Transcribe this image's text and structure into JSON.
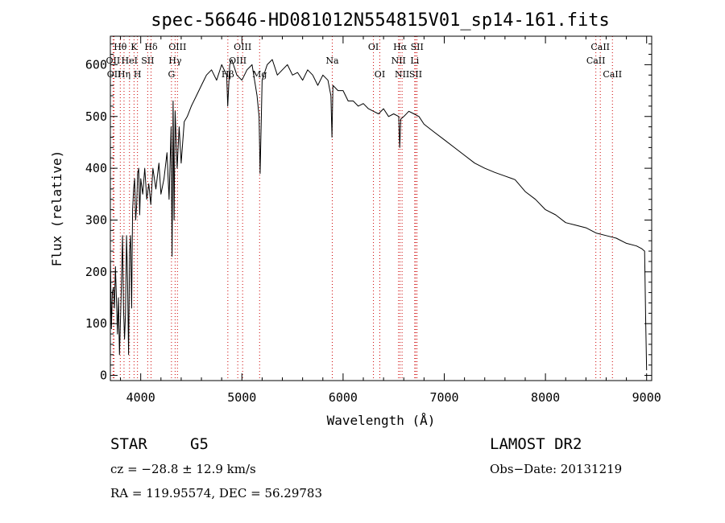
{
  "chart_data": {
    "type": "line",
    "title": "spec-56646-HD081012N554815V01_sp14-161.fits",
    "xlabel": "Wavelength (Å)",
    "ylabel": "Flux (relative)",
    "xlim": [
      3700,
      9050
    ],
    "ylim": [
      -10,
      655
    ],
    "xticks": [
      4000,
      5000,
      6000,
      7000,
      8000,
      9000
    ],
    "yticks": [
      0,
      100,
      200,
      300,
      400,
      500,
      600
    ],
    "grid": false,
    "series": [
      {
        "x": [
          3700,
          3710,
          3720,
          3730,
          3740,
          3750,
          3760,
          3770,
          3780,
          3790,
          3800,
          3810,
          3820,
          3830,
          3840,
          3850,
          3860,
          3870,
          3880,
          3890,
          3900,
          3910,
          3920,
          3930,
          3940,
          3950,
          3960,
          3970,
          3980,
          3990,
          4000,
          4020,
          4040,
          4060,
          4080,
          4100,
          4120,
          4150,
          4180,
          4200,
          4230,
          4260,
          4280,
          4300,
          4310,
          4320,
          4330,
          4340,
          4360,
          4380,
          4400,
          4430,
          4460,
          4500,
          4550,
          4600,
          4650,
          4700,
          4750,
          4800,
          4850,
          4860,
          4880,
          4900,
          4950,
          5000,
          5050,
          5100,
          5150,
          5170,
          5180,
          5200,
          5250,
          5300,
          5350,
          5400,
          5450,
          5500,
          5550,
          5600,
          5650,
          5700,
          5750,
          5800,
          5850,
          5880,
          5890,
          5900,
          5950,
          6000,
          6050,
          6100,
          6150,
          6200,
          6250,
          6300,
          6350,
          6400,
          6450,
          6500,
          6550,
          6560,
          6570,
          6600,
          6650,
          6700,
          6750,
          6800,
          6900,
          7000,
          7100,
          7200,
          7300,
          7400,
          7500,
          7600,
          7700,
          7800,
          7900,
          8000,
          8100,
          8200,
          8300,
          8400,
          8500,
          8600,
          8700,
          8800,
          8900,
          8950,
          8980,
          8990,
          9000
        ],
        "values": [
          230,
          90,
          160,
          170,
          130,
          210,
          150,
          80,
          150,
          40,
          110,
          180,
          270,
          130,
          70,
          120,
          270,
          180,
          40,
          240,
          270,
          130,
          320,
          360,
          380,
          300,
          330,
          390,
          400,
          310,
          380,
          350,
          400,
          340,
          370,
          330,
          400,
          360,
          410,
          350,
          380,
          430,
          340,
          480,
          230,
          530,
          300,
          510,
          400,
          480,
          410,
          490,
          500,
          520,
          540,
          560,
          580,
          590,
          570,
          600,
          580,
          520,
          600,
          610,
          580,
          570,
          590,
          600,
          540,
          500,
          390,
          570,
          600,
          610,
          580,
          590,
          600,
          580,
          585,
          570,
          590,
          580,
          560,
          580,
          570,
          540,
          460,
          560,
          550,
          550,
          530,
          530,
          520,
          525,
          515,
          510,
          505,
          515,
          500,
          505,
          500,
          440,
          495,
          500,
          510,
          505,
          500,
          485,
          470,
          455,
          440,
          425,
          410,
          400,
          392,
          385,
          378,
          355,
          340,
          320,
          310,
          295,
          290,
          285,
          275,
          270,
          265,
          255,
          250,
          245,
          240,
          110,
          10
        ]
      }
    ],
    "spectral_lines": [
      {
        "label": "Hθ",
        "x": 3798,
        "row": 0,
        "align": "center"
      },
      {
        "label": "K",
        "x": 3934,
        "row": 0,
        "align": "center"
      },
      {
        "label": "Hδ",
        "x": 4102,
        "row": 0,
        "align": "center"
      },
      {
        "label": "OIII",
        "x": 4363,
        "row": 0,
        "align": "center"
      },
      {
        "label": "OIII",
        "x": 5007,
        "row": 0,
        "align": "center"
      },
      {
        "label": "OI",
        "x": 6300,
        "row": 0,
        "align": "center"
      },
      {
        "label": "Hα",
        "x": 6563,
        "row": 0,
        "align": "center"
      },
      {
        "label": "SII",
        "x": 6731,
        "row": 0,
        "align": "center"
      },
      {
        "label": "CaII",
        "x": 8542,
        "row": 0,
        "align": "center"
      },
      {
        "label": "OII",
        "x": 3727,
        "row": 1,
        "align": "center"
      },
      {
        "label": "HeI",
        "x": 3889,
        "row": 1,
        "align": "center"
      },
      {
        "label": "SII",
        "x": 4069,
        "row": 1,
        "align": "center"
      },
      {
        "label": "Hγ",
        "x": 4340,
        "row": 1,
        "align": "center"
      },
      {
        "label": "OIII",
        "x": 4959,
        "row": 1,
        "align": "center"
      },
      {
        "label": "Na",
        "x": 5893,
        "row": 1,
        "align": "center"
      },
      {
        "label": "NII",
        "x": 6548,
        "row": 1,
        "align": "center"
      },
      {
        "label": "Li",
        "x": 6708,
        "row": 1,
        "align": "center"
      },
      {
        "label": "CaII",
        "x": 8498,
        "row": 1,
        "align": "center"
      },
      {
        "label": "OII",
        "x": 3737,
        "row": 2,
        "align": "center"
      },
      {
        "label": "Hη",
        "x": 3835,
        "row": 2,
        "align": "center"
      },
      {
        "label": "H",
        "x": 3968,
        "row": 2,
        "align": "center"
      },
      {
        "label": "G",
        "x": 4304,
        "row": 2,
        "align": "center"
      },
      {
        "label": "Hβ",
        "x": 4861,
        "row": 2,
        "align": "center"
      },
      {
        "label": "Mg",
        "x": 5175,
        "row": 2,
        "align": "center"
      },
      {
        "label": "OI",
        "x": 6363,
        "row": 2,
        "align": "center"
      },
      {
        "label": "NII",
        "x": 6583,
        "row": 2,
        "align": "center"
      },
      {
        "label": "SII",
        "x": 6717,
        "row": 2,
        "align": "center"
      },
      {
        "label": "CaII",
        "x": 8662,
        "row": 2,
        "align": "center"
      }
    ],
    "line_color": "#000000",
    "marker_color": "#cc0000"
  },
  "info": {
    "object_class": "STAR",
    "subclass": "G5",
    "survey": "LAMOST DR2",
    "redshift": "cz = −28.8 ± 12.9 km/s",
    "obs_date": "Obs−Date: 20131219",
    "coords": "RA = 119.95574, DEC =  56.29783"
  }
}
